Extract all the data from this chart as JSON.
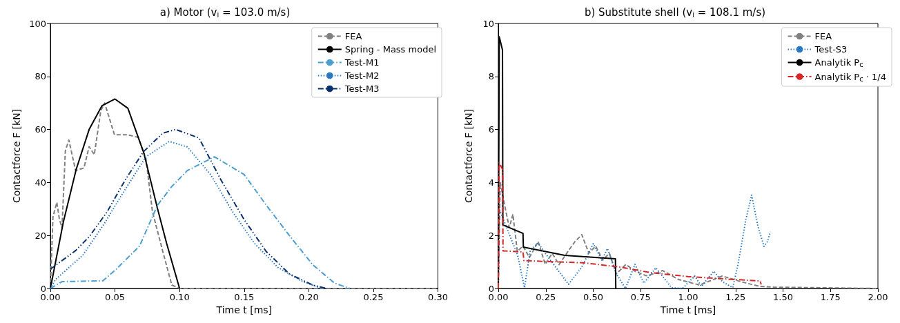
{
  "chart_data": [
    {
      "type": "line",
      "title": "a) Motor (v$_{i}$ = 103.0 m/s)",
      "xlabel": "Time t [ms]",
      "ylabel": "Contactforce F [kN]",
      "legend": "top right",
      "xlim": [
        0,
        0.3
      ],
      "ylim": [
        0,
        100
      ],
      "xticks": [
        {
          "value": 0,
          "label": "0.00"
        },
        {
          "value": 0.05,
          "label": "0.05"
        },
        {
          "value": 0.1,
          "label": "0.10"
        },
        {
          "value": 0.15,
          "label": "0.15"
        },
        {
          "value": 0.2,
          "label": "0.20"
        },
        {
          "value": 0.25,
          "label": "0.25"
        },
        {
          "value": 0.3,
          "label": "0.30"
        }
      ],
      "yticks": [
        0,
        20,
        40,
        60,
        80,
        100
      ],
      "series": [
        {
          "name": "FEA",
          "color": "#808080",
          "line_style": "dashed",
          "x": [
            0,
            0.002,
            0.005,
            0.007,
            0.009,
            0.0116,
            0.0143,
            0.0195,
            0.026,
            0.03,
            0.034,
            0.039,
            0.042,
            0.0496,
            0.06,
            0.068,
            0.074,
            0.079,
            0.087,
            0.094,
            0.1,
            0.3
          ],
          "values": [
            0,
            27,
            32.5,
            26,
            23,
            52,
            56,
            44.5,
            45.5,
            53.5,
            50.5,
            67,
            70,
            58,
            58,
            57,
            49,
            29,
            14,
            1.3,
            0,
            0
          ]
        },
        {
          "name": "Spring - Mass model",
          "color": "#000000",
          "line_style": "solid",
          "x": [
            0,
            0.01,
            0.02,
            0.03,
            0.04,
            0.05,
            0.06,
            0.0724,
            0.083,
            0.09,
            0.1
          ],
          "values": [
            0,
            25,
            45,
            60,
            69,
            71.5,
            68,
            51,
            30,
            17,
            0
          ]
        },
        {
          "name": "Test-M1",
          "color": "#4a9fd0",
          "line_style": "dashdot",
          "x": [
            0,
            0.009,
            0.0407,
            0.051,
            0.069,
            0.083,
            0.094,
            0.106,
            0.127,
            0.15,
            0.167,
            0.185,
            0.203,
            0.22,
            0.232
          ],
          "values": [
            0,
            2.6,
            2.9,
            7.3,
            16,
            31.5,
            38.5,
            44.5,
            49.7,
            43,
            31.5,
            20,
            9,
            2,
            0
          ]
        },
        {
          "name": "Test-M2",
          "color": "#2a79c0",
          "line_style": "dotted",
          "x": [
            0,
            0.004,
            0.025,
            0.042,
            0.057,
            0.074,
            0.092,
            0.106,
            0.124,
            0.141,
            0.158,
            0.176,
            0.194,
            0.21
          ],
          "values": [
            0,
            3.4,
            12.5,
            24.7,
            36.7,
            49.7,
            55.5,
            53.4,
            43,
            29,
            17,
            8,
            2.9,
            0
          ]
        },
        {
          "name": "Test-M3",
          "color": "#08306b",
          "line_style": "dashdotdot",
          "x": [
            0,
            0.0195,
            0.03,
            0.044,
            0.058,
            0.072,
            0.087,
            0.097,
            0.115,
            0.132,
            0.15,
            0.167,
            0.185,
            0.203,
            0.214
          ],
          "values": [
            7.3,
            14.3,
            19.5,
            29,
            41,
            51.6,
            58.6,
            60,
            56.8,
            41,
            26,
            14,
            5.5,
            1.3,
            0
          ]
        }
      ]
    },
    {
      "type": "line",
      "title": "b) Substitute shell (v$_{i}$ = 108.1 m/s)",
      "xlabel": "Time t [ms]",
      "ylabel": "Contactforce F [kN]",
      "legend": "top right",
      "xlim": [
        0,
        2
      ],
      "ylim": [
        0,
        10
      ],
      "xticks": [
        {
          "value": 0,
          "label": "0.00"
        },
        {
          "value": 0.25,
          "label": "0.25"
        },
        {
          "value": 0.5,
          "label": "0.50"
        },
        {
          "value": 0.75,
          "label": "0.75"
        },
        {
          "value": 1,
          "label": "1.00"
        },
        {
          "value": 1.25,
          "label": "1.25"
        },
        {
          "value": 1.5,
          "label": "1.50"
        },
        {
          "value": 1.75,
          "label": "1.75"
        },
        {
          "value": 2,
          "label": "2.00"
        }
      ],
      "yticks": [
        0,
        2,
        4,
        6,
        8,
        10
      ],
      "series": [
        {
          "name": "FEA",
          "color": "#808080",
          "line_style": "dashed",
          "x": [
            0,
            0.01,
            0.04,
            0.058,
            0.077,
            0.1,
            0.13,
            0.164,
            0.21,
            0.247,
            0.284,
            0.32,
            0.37,
            0.404,
            0.44,
            0.477,
            0.513,
            0.55,
            0.585,
            0.622,
            0.672,
            0.72,
            0.78,
            0.84,
            0.865,
            0.95,
            1.06,
            1.18,
            1.277,
            1.375,
            1.45,
            2
          ],
          "values": [
            0,
            4,
            2.9,
            2.3,
            2.8,
            1.4,
            1.6,
            1.17,
            1.77,
            0.91,
            1.33,
            0.9,
            1.43,
            1.77,
            2.03,
            1.33,
            1.6,
            1.07,
            1.33,
            0.55,
            0.91,
            0.65,
            0.48,
            0.6,
            0.68,
            0.34,
            0.13,
            0.47,
            0.26,
            0.08,
            0.05,
            0
          ]
        },
        {
          "name": "Test-S3",
          "color": "#2a79c0",
          "line_style": "dotted",
          "x": [
            0,
            0.005,
            0.102,
            0.138,
            0.168,
            0.21,
            0.247,
            0.31,
            0.37,
            0.44,
            0.5,
            0.545,
            0.575,
            0.622,
            0.67,
            0.72,
            0.767,
            0.83,
            0.913,
            0.97,
            1.035,
            1.07,
            1.135,
            1.18,
            1.235,
            1.26,
            1.28,
            1.305,
            1.335,
            1.367,
            1.4,
            1.418,
            1.433
          ],
          "values": [
            0,
            3,
            1.25,
            0.03,
            1.43,
            1.72,
            1.33,
            0.73,
            0.16,
            0.81,
            1.69,
            1.07,
            1.51,
            0.55,
            0,
            0.91,
            0.2,
            0.78,
            0.03,
            0,
            0.47,
            0.08,
            0.65,
            0.26,
            0.03,
            0.81,
            1.59,
            2.63,
            3.52,
            2.37,
            1.59,
            1.77,
            2.14
          ]
        },
        {
          "name": "Analytik P$_{c}$",
          "color": "#000000",
          "line_style": "solid",
          "x": [
            0,
            0.005,
            0.022,
            0.024,
            0.13,
            0.132,
            0.35,
            0.617,
            0.619
          ],
          "values": [
            0,
            9.5,
            9,
            2.4,
            2.08,
            1.56,
            1.25,
            1.12,
            0
          ]
        },
        {
          "name": "Analytik P$_{c}$ · 1/4",
          "color": "#d62728",
          "line_style": "dashdot",
          "x": [
            0,
            0.005,
            0.022,
            0.025,
            0.13,
            0.135,
            0.45,
            0.65,
            0.8,
            1,
            1.2,
            1.38,
            1.385
          ],
          "values": [
            0,
            4.75,
            4.5,
            1.42,
            1.38,
            1.05,
            0.97,
            0.8,
            0.6,
            0.45,
            0.36,
            0.28,
            0.15
          ]
        }
      ]
    }
  ]
}
